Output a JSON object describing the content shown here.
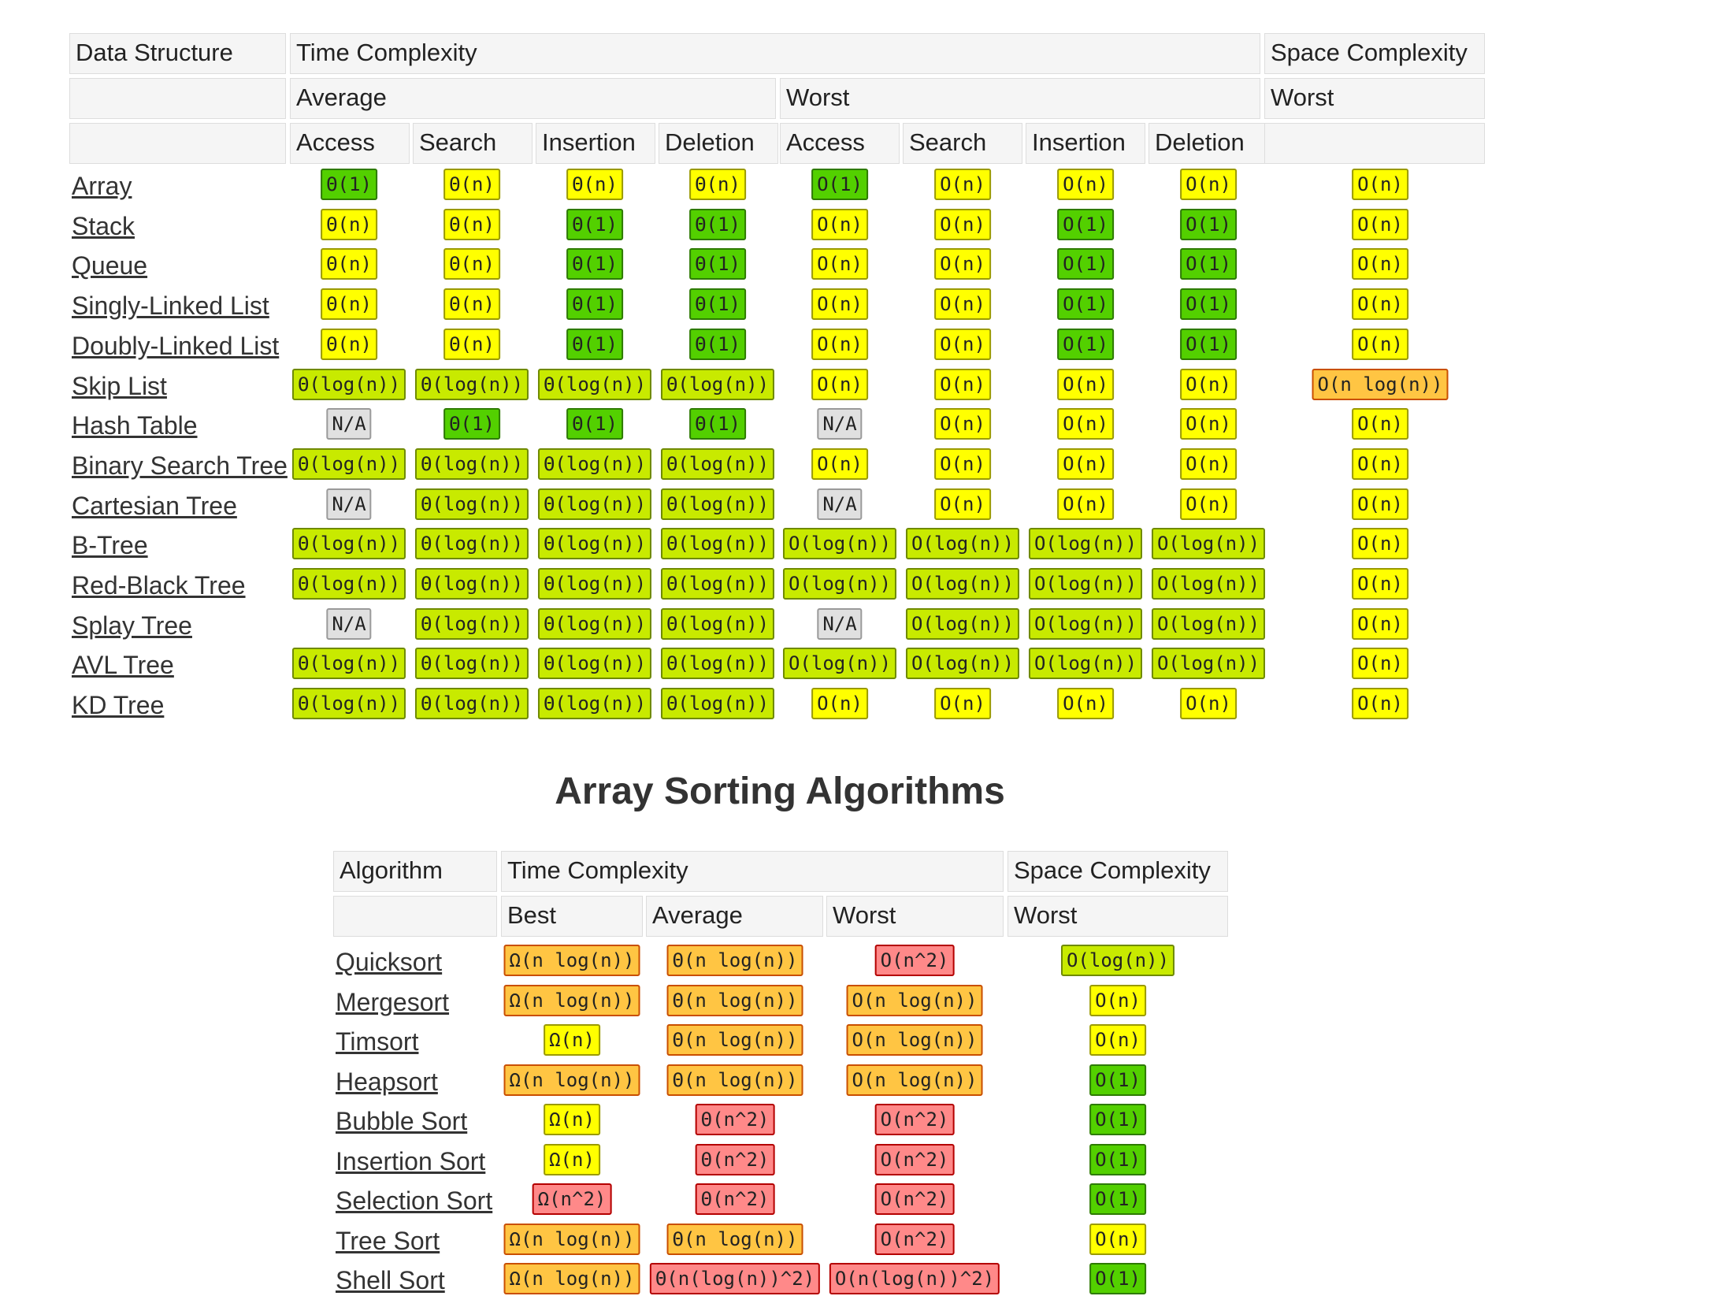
{
  "ds_table": {
    "header1": {
      "col0": "Data Structure",
      "time": "Time Complexity",
      "space": "Space Complexity"
    },
    "header2": {
      "average": "Average",
      "worst": "Worst",
      "space_worst": "Worst"
    },
    "header3": [
      "Access",
      "Search",
      "Insertion",
      "Deletion",
      "Access",
      "Search",
      "Insertion",
      "Deletion"
    ],
    "rows": [
      {
        "name": "Array",
        "cells": [
          [
            "Θ(1)",
            "green"
          ],
          [
            "Θ(n)",
            "yellow"
          ],
          [
            "Θ(n)",
            "yellow"
          ],
          [
            "Θ(n)",
            "yellow"
          ],
          [
            "O(1)",
            "green"
          ],
          [
            "O(n)",
            "yellow"
          ],
          [
            "O(n)",
            "yellow"
          ],
          [
            "O(n)",
            "yellow"
          ],
          [
            "O(n)",
            "yellow"
          ]
        ]
      },
      {
        "name": "Stack",
        "cells": [
          [
            "Θ(n)",
            "yellow"
          ],
          [
            "Θ(n)",
            "yellow"
          ],
          [
            "Θ(1)",
            "green"
          ],
          [
            "Θ(1)",
            "green"
          ],
          [
            "O(n)",
            "yellow"
          ],
          [
            "O(n)",
            "yellow"
          ],
          [
            "O(1)",
            "green"
          ],
          [
            "O(1)",
            "green"
          ],
          [
            "O(n)",
            "yellow"
          ]
        ]
      },
      {
        "name": "Queue",
        "cells": [
          [
            "Θ(n)",
            "yellow"
          ],
          [
            "Θ(n)",
            "yellow"
          ],
          [
            "Θ(1)",
            "green"
          ],
          [
            "Θ(1)",
            "green"
          ],
          [
            "O(n)",
            "yellow"
          ],
          [
            "O(n)",
            "yellow"
          ],
          [
            "O(1)",
            "green"
          ],
          [
            "O(1)",
            "green"
          ],
          [
            "O(n)",
            "yellow"
          ]
        ]
      },
      {
        "name": "Singly-Linked List",
        "cells": [
          [
            "Θ(n)",
            "yellow"
          ],
          [
            "Θ(n)",
            "yellow"
          ],
          [
            "Θ(1)",
            "green"
          ],
          [
            "Θ(1)",
            "green"
          ],
          [
            "O(n)",
            "yellow"
          ],
          [
            "O(n)",
            "yellow"
          ],
          [
            "O(1)",
            "green"
          ],
          [
            "O(1)",
            "green"
          ],
          [
            "O(n)",
            "yellow"
          ]
        ]
      },
      {
        "name": "Doubly-Linked List",
        "cells": [
          [
            "Θ(n)",
            "yellow"
          ],
          [
            "Θ(n)",
            "yellow"
          ],
          [
            "Θ(1)",
            "green"
          ],
          [
            "Θ(1)",
            "green"
          ],
          [
            "O(n)",
            "yellow"
          ],
          [
            "O(n)",
            "yellow"
          ],
          [
            "O(1)",
            "green"
          ],
          [
            "O(1)",
            "green"
          ],
          [
            "O(n)",
            "yellow"
          ]
        ]
      },
      {
        "name": "Skip List",
        "cells": [
          [
            "Θ(log(n))",
            "lime"
          ],
          [
            "Θ(log(n))",
            "lime"
          ],
          [
            "Θ(log(n))",
            "lime"
          ],
          [
            "Θ(log(n))",
            "lime"
          ],
          [
            "O(n)",
            "yellow"
          ],
          [
            "O(n)",
            "yellow"
          ],
          [
            "O(n)",
            "yellow"
          ],
          [
            "O(n)",
            "yellow"
          ],
          [
            "O(n log(n))",
            "orange"
          ]
        ]
      },
      {
        "name": "Hash Table",
        "cells": [
          [
            "N/A",
            "gray"
          ],
          [
            "Θ(1)",
            "green"
          ],
          [
            "Θ(1)",
            "green"
          ],
          [
            "Θ(1)",
            "green"
          ],
          [
            "N/A",
            "gray"
          ],
          [
            "O(n)",
            "yellow"
          ],
          [
            "O(n)",
            "yellow"
          ],
          [
            "O(n)",
            "yellow"
          ],
          [
            "O(n)",
            "yellow"
          ]
        ]
      },
      {
        "name": "Binary Search Tree",
        "cells": [
          [
            "Θ(log(n))",
            "lime"
          ],
          [
            "Θ(log(n))",
            "lime"
          ],
          [
            "Θ(log(n))",
            "lime"
          ],
          [
            "Θ(log(n))",
            "lime"
          ],
          [
            "O(n)",
            "yellow"
          ],
          [
            "O(n)",
            "yellow"
          ],
          [
            "O(n)",
            "yellow"
          ],
          [
            "O(n)",
            "yellow"
          ],
          [
            "O(n)",
            "yellow"
          ]
        ]
      },
      {
        "name": "Cartesian Tree",
        "cells": [
          [
            "N/A",
            "gray"
          ],
          [
            "Θ(log(n))",
            "lime"
          ],
          [
            "Θ(log(n))",
            "lime"
          ],
          [
            "Θ(log(n))",
            "lime"
          ],
          [
            "N/A",
            "gray"
          ],
          [
            "O(n)",
            "yellow"
          ],
          [
            "O(n)",
            "yellow"
          ],
          [
            "O(n)",
            "yellow"
          ],
          [
            "O(n)",
            "yellow"
          ]
        ]
      },
      {
        "name": "B-Tree",
        "cells": [
          [
            "Θ(log(n))",
            "lime"
          ],
          [
            "Θ(log(n))",
            "lime"
          ],
          [
            "Θ(log(n))",
            "lime"
          ],
          [
            "Θ(log(n))",
            "lime"
          ],
          [
            "O(log(n))",
            "lime"
          ],
          [
            "O(log(n))",
            "lime"
          ],
          [
            "O(log(n))",
            "lime"
          ],
          [
            "O(log(n))",
            "lime"
          ],
          [
            "O(n)",
            "yellow"
          ]
        ]
      },
      {
        "name": "Red-Black Tree",
        "cells": [
          [
            "Θ(log(n))",
            "lime"
          ],
          [
            "Θ(log(n))",
            "lime"
          ],
          [
            "Θ(log(n))",
            "lime"
          ],
          [
            "Θ(log(n))",
            "lime"
          ],
          [
            "O(log(n))",
            "lime"
          ],
          [
            "O(log(n))",
            "lime"
          ],
          [
            "O(log(n))",
            "lime"
          ],
          [
            "O(log(n))",
            "lime"
          ],
          [
            "O(n)",
            "yellow"
          ]
        ]
      },
      {
        "name": "Splay Tree",
        "cells": [
          [
            "N/A",
            "gray"
          ],
          [
            "Θ(log(n))",
            "lime"
          ],
          [
            "Θ(log(n))",
            "lime"
          ],
          [
            "Θ(log(n))",
            "lime"
          ],
          [
            "N/A",
            "gray"
          ],
          [
            "O(log(n))",
            "lime"
          ],
          [
            "O(log(n))",
            "lime"
          ],
          [
            "O(log(n))",
            "lime"
          ],
          [
            "O(n)",
            "yellow"
          ]
        ]
      },
      {
        "name": "AVL Tree",
        "cells": [
          [
            "Θ(log(n))",
            "lime"
          ],
          [
            "Θ(log(n))",
            "lime"
          ],
          [
            "Θ(log(n))",
            "lime"
          ],
          [
            "Θ(log(n))",
            "lime"
          ],
          [
            "O(log(n))",
            "lime"
          ],
          [
            "O(log(n))",
            "lime"
          ],
          [
            "O(log(n))",
            "lime"
          ],
          [
            "O(log(n))",
            "lime"
          ],
          [
            "O(n)",
            "yellow"
          ]
        ]
      },
      {
        "name": "KD Tree",
        "cells": [
          [
            "Θ(log(n))",
            "lime"
          ],
          [
            "Θ(log(n))",
            "lime"
          ],
          [
            "Θ(log(n))",
            "lime"
          ],
          [
            "Θ(log(n))",
            "lime"
          ],
          [
            "O(n)",
            "yellow"
          ],
          [
            "O(n)",
            "yellow"
          ],
          [
            "O(n)",
            "yellow"
          ],
          [
            "O(n)",
            "yellow"
          ],
          [
            "O(n)",
            "yellow"
          ]
        ]
      }
    ]
  },
  "sort_section_title": "Array Sorting Algorithms",
  "sort_table": {
    "header1": {
      "col0": "Algorithm",
      "time": "Time Complexity",
      "space": "Space Complexity"
    },
    "header2": [
      "Best",
      "Average",
      "Worst",
      "Worst"
    ],
    "rows": [
      {
        "name": "Quicksort",
        "cells": [
          [
            "Ω(n log(n))",
            "orange"
          ],
          [
            "Θ(n log(n))",
            "orange"
          ],
          [
            "O(n^2)",
            "red"
          ],
          [
            "O(log(n))",
            "lime"
          ]
        ]
      },
      {
        "name": "Mergesort",
        "cells": [
          [
            "Ω(n log(n))",
            "orange"
          ],
          [
            "Θ(n log(n))",
            "orange"
          ],
          [
            "O(n log(n))",
            "orange"
          ],
          [
            "O(n)",
            "yellow"
          ]
        ]
      },
      {
        "name": "Timsort",
        "cells": [
          [
            "Ω(n)",
            "yellow"
          ],
          [
            "Θ(n log(n))",
            "orange"
          ],
          [
            "O(n log(n))",
            "orange"
          ],
          [
            "O(n)",
            "yellow"
          ]
        ]
      },
      {
        "name": "Heapsort",
        "cells": [
          [
            "Ω(n log(n))",
            "orange"
          ],
          [
            "Θ(n log(n))",
            "orange"
          ],
          [
            "O(n log(n))",
            "orange"
          ],
          [
            "O(1)",
            "green"
          ]
        ]
      },
      {
        "name": "Bubble Sort",
        "cells": [
          [
            "Ω(n)",
            "yellow"
          ],
          [
            "Θ(n^2)",
            "red"
          ],
          [
            "O(n^2)",
            "red"
          ],
          [
            "O(1)",
            "green"
          ]
        ]
      },
      {
        "name": "Insertion Sort",
        "cells": [
          [
            "Ω(n)",
            "yellow"
          ],
          [
            "Θ(n^2)",
            "red"
          ],
          [
            "O(n^2)",
            "red"
          ],
          [
            "O(1)",
            "green"
          ]
        ]
      },
      {
        "name": "Selection Sort",
        "cells": [
          [
            "Ω(n^2)",
            "red"
          ],
          [
            "Θ(n^2)",
            "red"
          ],
          [
            "O(n^2)",
            "red"
          ],
          [
            "O(1)",
            "green"
          ]
        ]
      },
      {
        "name": "Tree Sort",
        "cells": [
          [
            "Ω(n log(n))",
            "orange"
          ],
          [
            "Θ(n log(n))",
            "orange"
          ],
          [
            "O(n^2)",
            "red"
          ],
          [
            "O(n)",
            "yellow"
          ]
        ]
      },
      {
        "name": "Shell Sort",
        "cells": [
          [
            "Ω(n log(n))",
            "orange"
          ],
          [
            "Θ(n(log(n))^2)",
            "red"
          ],
          [
            "O(n(log(n))^2)",
            "red"
          ],
          [
            "O(1)",
            "green"
          ]
        ]
      }
    ]
  }
}
